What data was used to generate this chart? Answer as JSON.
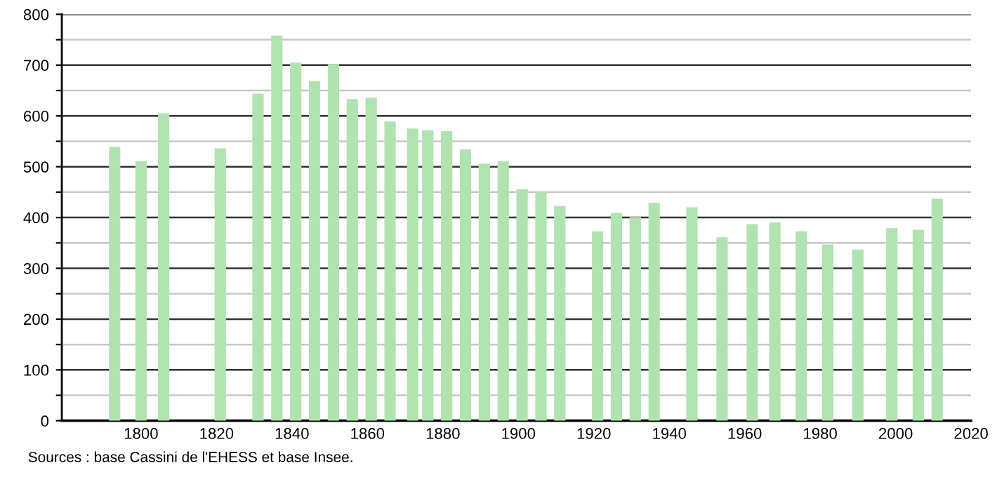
{
  "chart_data": {
    "type": "bar",
    "color": "#b0e3b0",
    "x": [
      1793,
      1800,
      1806,
      1821,
      1831,
      1836,
      1841,
      1846,
      1851,
      1856,
      1861,
      1866,
      1872,
      1876,
      1881,
      1886,
      1891,
      1896,
      1901,
      1906,
      1911,
      1921,
      1926,
      1931,
      1936,
      1946,
      1954,
      1962,
      1968,
      1975,
      1982,
      1990,
      1999,
      2006,
      2011
    ],
    "values": [
      539,
      511,
      605,
      536,
      644,
      758,
      705,
      669,
      702,
      633,
      636,
      589,
      575,
      572,
      570,
      534,
      506,
      511,
      456,
      449,
      423,
      373,
      409,
      401,
      429,
      420,
      361,
      387,
      390,
      373,
      347,
      337,
      379,
      376,
      437
    ],
    "xlim": [
      1779,
      2020
    ],
    "xticks": [
      1800,
      1820,
      1840,
      1860,
      1880,
      1900,
      1920,
      1940,
      1960,
      1980,
      2000,
      2020
    ],
    "ylim": [
      0,
      800
    ],
    "yticks": [
      0,
      {
        "value": 50,
        "label": null
      },
      100,
      {
        "value": 150,
        "label": null
      },
      200,
      {
        "value": 250,
        "label": null
      },
      300,
      {
        "value": 350,
        "label": null
      },
      400,
      {
        "value": 450,
        "label": null
      },
      500,
      {
        "value": 550,
        "label": null
      },
      600,
      {
        "value": 650,
        "label": null
      },
      700,
      {
        "value": 750,
        "label": null
      },
      800
    ],
    "grid": "y",
    "annotations": [
      "Sources : base Cassini de l'EHESS et base Insee."
    ]
  }
}
